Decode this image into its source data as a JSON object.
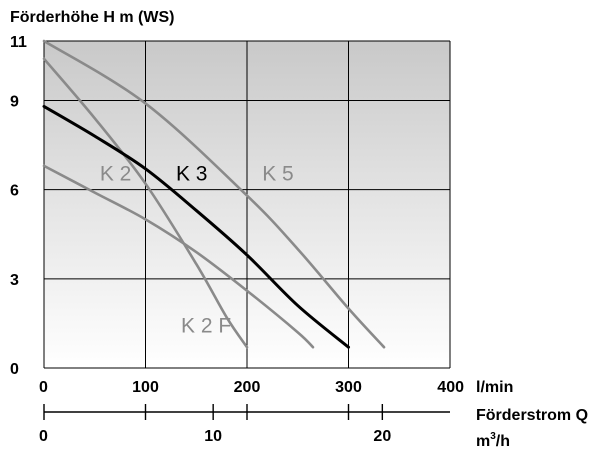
{
  "chart_data": {
    "type": "line",
    "title": "Förderhöhe H m (WS)",
    "ylim": [
      0,
      11
    ],
    "yticks": [
      "0",
      "3",
      "6",
      "9",
      "11"
    ],
    "xlim": [
      0,
      400
    ],
    "xticks": [
      "0",
      "100",
      "200",
      "300",
      "400"
    ],
    "xunit": "l/min",
    "xlabel": "Förderstrom Q",
    "x2ticks": [
      {
        "label": "0",
        "value": 0
      },
      {
        "label": "10",
        "value": 10
      },
      {
        "label": "20",
        "value": 20
      }
    ],
    "x2unit_base": "m",
    "x2unit_sup": "3",
    "x2unit_tail": "/h",
    "grid": true,
    "series": [
      {
        "name": "K 2",
        "color": "#8a8a8a",
        "x": [
          0,
          50,
          100,
          150,
          200,
          250,
          265
        ],
        "y": [
          6.8,
          5.9,
          5.0,
          3.9,
          2.6,
          1.2,
          0.7
        ]
      },
      {
        "name": "K 2 F",
        "color": "#8a8a8a",
        "x": [
          0,
          50,
          100,
          150,
          180,
          200
        ],
        "y": [
          10.4,
          8.4,
          6.2,
          3.5,
          1.7,
          0.7
        ]
      },
      {
        "name": "K 3",
        "color": "#000000",
        "x": [
          0,
          50,
          100,
          150,
          200,
          250,
          300
        ],
        "y": [
          8.8,
          7.8,
          6.7,
          5.3,
          3.8,
          2.1,
          0.7
        ]
      },
      {
        "name": "K 5",
        "color": "#8a8a8a",
        "x": [
          0,
          100,
          200,
          250,
          300,
          335
        ],
        "y": [
          11.0,
          8.9,
          5.8,
          4.0,
          2.0,
          0.7
        ]
      }
    ],
    "series_labels": [
      {
        "series": "K 2",
        "text": "K 2",
        "x": 55,
        "y": 6.3,
        "color": "#8a8a8a"
      },
      {
        "series": "K 3",
        "text": "K 3",
        "x": 130,
        "y": 6.3,
        "color": "#000000"
      },
      {
        "series": "K 5",
        "text": "K 5",
        "x": 215,
        "y": 6.3,
        "color": "#8a8a8a"
      },
      {
        "series": "K 2 F",
        "text": "K 2 F",
        "x": 135,
        "y": 1.2,
        "color": "#8a8a8a"
      }
    ]
  }
}
